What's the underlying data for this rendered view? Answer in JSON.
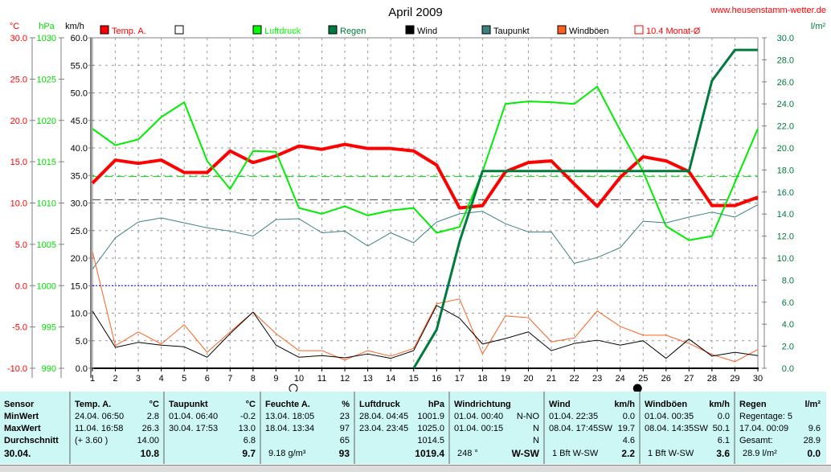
{
  "title": "April 2009",
  "website": "www.heusenstamm-wetter.de",
  "chart_data": {
    "type": "line",
    "title": "April 2009",
    "x": [
      1,
      2,
      3,
      4,
      5,
      6,
      7,
      8,
      9,
      10,
      11,
      12,
      13,
      14,
      15,
      16,
      17,
      18,
      19,
      20,
      21,
      22,
      23,
      24,
      25,
      26,
      27,
      28,
      29,
      30
    ],
    "axes": {
      "temp": {
        "unit": "°C",
        "range": [
          -10,
          30
        ],
        "ticks": [
          "30.0",
          "25.0",
          "20.0",
          "15.0",
          "10.0",
          "5.0",
          "0.0",
          "-5.0",
          "-10.0"
        ],
        "color": "#ff0000"
      },
      "pressure": {
        "unit": "hPa",
        "range": [
          990,
          1030
        ],
        "ticks": [
          "1030",
          "1025",
          "1020",
          "1015",
          "1010",
          "1005",
          "1000",
          "995",
          "990"
        ],
        "color": "#00dd00"
      },
      "wind": {
        "unit": "km/h",
        "range": [
          0,
          60
        ],
        "ticks": [
          "60.0",
          "55.0",
          "50.0",
          "45.0",
          "40.0",
          "35.0",
          "30.0",
          "25.0",
          "20.0",
          "15.0",
          "10.0",
          "5.0",
          "0.0"
        ],
        "color": "#000000"
      },
      "rain": {
        "unit": "l/m²",
        "range": [
          0,
          30
        ],
        "ticks": [
          "30.0",
          "28.0",
          "26.0",
          "24.0",
          "22.0",
          "20.0",
          "18.0",
          "16.0",
          "14.0",
          "12.0",
          "10.0",
          "8.0",
          "6.0",
          "4.0",
          "2.0",
          "0.0"
        ],
        "color": "#007a3d"
      }
    },
    "legend": [
      {
        "label": "Temp. A.",
        "color": "#ff0000"
      },
      {
        "label": "",
        "color": "#ffffff"
      },
      {
        "label": "Luftdruck",
        "color": "#00ff00"
      },
      {
        "label": "Regen",
        "color": "#007a3d"
      },
      {
        "label": "Wind",
        "color": "#000000"
      },
      {
        "label": "Taupunkt",
        "color": "#3c8080"
      },
      {
        "label": "Windböen",
        "color": "#ff6020"
      },
      {
        "label": "10.4 Monat-Ø",
        "color": "#ff0000"
      }
    ],
    "series": [
      {
        "name": "Temp. A.",
        "axis": "temp",
        "color": "#ff0000",
        "width": 4,
        "values": [
          12.4,
          15.2,
          14.8,
          15.2,
          13.7,
          13.7,
          16.3,
          14.9,
          15.7,
          16.9,
          16.5,
          17.1,
          16.6,
          16.6,
          16.3,
          14.6,
          9.4,
          9.7,
          13.8,
          14.9,
          15.1,
          12.3,
          9.6,
          13.1,
          15.6,
          15.1,
          13.8,
          9.7,
          9.7,
          10.7
        ]
      },
      {
        "name": "Luftdruck",
        "axis": "pressure",
        "color": "#00ee00",
        "width": 2,
        "values": [
          1019,
          1017,
          1017.7,
          1020.4,
          1022.2,
          1015.1,
          1011.7,
          1016.3,
          1016.2,
          1009.4,
          1008.7,
          1009.6,
          1008.5,
          1009.1,
          1009.4,
          1006.4,
          1007.1,
          1013.8,
          1022,
          1022.3,
          1022.2,
          1022,
          1024.1,
          1018.8,
          1013.8,
          1007.2,
          1005.5,
          1006,
          1012.5,
          1019
        ]
      },
      {
        "name": "Taupunkt",
        "axis": "temp",
        "color": "#3c8080",
        "width": 1,
        "values": [
          2,
          5.8,
          7.7,
          8.2,
          7.6,
          7,
          6.6,
          6,
          8,
          8.1,
          6.4,
          6.6,
          4.8,
          6.4,
          5.2,
          7.7,
          8.7,
          9,
          7.5,
          6.5,
          6.5,
          2.7,
          3.4,
          4.6,
          7.8,
          7.6,
          8.3,
          8.9,
          8.3,
          9.8
        ]
      },
      {
        "name": "Windböen",
        "axis": "wind",
        "color": "#ff6020",
        "width": 1,
        "values": [
          21.2,
          4.1,
          6.6,
          4.4,
          7.9,
          2.9,
          6.6,
          10.2,
          6.3,
          3.2,
          3.2,
          1.5,
          3.2,
          2.2,
          3.6,
          11.7,
          12.6,
          2.6,
          9.5,
          9.2,
          4.8,
          5.5,
          10.4,
          7.6,
          6,
          6,
          4.5,
          2.5,
          1.2,
          3.4
        ]
      },
      {
        "name": "Wind",
        "axis": "wind",
        "color": "#000000",
        "width": 1,
        "values": [
          10.4,
          3.8,
          4.7,
          4.2,
          3.9,
          2,
          6.3,
          10.2,
          4.2,
          2,
          2.3,
          1.9,
          2.6,
          1.8,
          3.2,
          11.4,
          9.1,
          4.4,
          5.4,
          6.6,
          3.2,
          4.5,
          5.1,
          4.2,
          5,
          1.8,
          5.3,
          2.2,
          2.9,
          2.3
        ]
      },
      {
        "name": "Regen",
        "axis": "rain",
        "color": "#007a3d",
        "width": 3,
        "values": [
          null,
          null,
          null,
          null,
          null,
          null,
          null,
          null,
          null,
          null,
          null,
          null,
          null,
          null,
          0,
          3.5,
          11.5,
          17.9,
          17.9,
          17.9,
          17.9,
          17.9,
          17.9,
          17.9,
          17.9,
          17.9,
          17.9,
          26.1,
          28.9,
          28.9
        ]
      }
    ],
    "reference_lines": [
      {
        "name": "Monat-Ø",
        "axis": "temp",
        "value": 10.4,
        "color": "#444444",
        "style": "dash"
      },
      {
        "name": "Normaldruck",
        "axis": "pressure",
        "value": 1013.2,
        "color": "#00dd00",
        "style": "dash"
      },
      {
        "name": "Frost",
        "axis": "temp",
        "value": 0,
        "color": "#0000ff",
        "style": "dot"
      }
    ],
    "moon_markers": [
      {
        "day": 10,
        "phase": "full"
      },
      {
        "day": 25,
        "phase": "new"
      }
    ]
  },
  "table": {
    "labels": {
      "h": "Sensor",
      "min": "MinWert",
      "max": "MaxWert",
      "avg": "Durchschnitt",
      "cur": "30.04."
    },
    "cols": [
      {
        "h": "Temp. A.",
        "u": "°C",
        "min_t": "24.04.  06:50",
        "min": "2.8",
        "max_t": "11.04.  16:58",
        "max": "26.3",
        "avg_t": "(+ 3.60 )",
        "avg": "14.00",
        "cur_t": "",
        "cur": "10.8"
      },
      {
        "h": "Taupunkt",
        "u": "°C",
        "min_t": "01.04.  06:40",
        "min": "-0.2",
        "max_t": "30.04.  17:53",
        "max": "13.0",
        "avg_t": "",
        "avg": "6.8",
        "cur_t": "",
        "cur": "9.7"
      },
      {
        "h": "Feuchte A.",
        "u": "%",
        "min_t": "13.04.  18:05",
        "min": "23",
        "max_t": "18.04.  13:34",
        "max": "97",
        "avg_t": "",
        "avg": "65",
        "cur_t": "9.18 g/m³",
        "cur": "93"
      },
      {
        "h": "Luftdruck",
        "u": "hPa",
        "min_t": "28.04.  04:45",
        "min": "1001.9",
        "max_t": "23.04.  23:45",
        "max": "1025.0",
        "avg_t": "",
        "avg": "1014.5",
        "cur_t": "",
        "cur": "1019.4"
      },
      {
        "h": "Windrichtung",
        "u": "",
        "min_t": "01.04.  00:40",
        "min": "N-NO",
        "max_t": "01.04.  00:15",
        "max": "N",
        "avg_t": "",
        "avg": "N",
        "cur_t": "248 °",
        "cur": "W-SW"
      },
      {
        "h": "Wind",
        "u": "km/h",
        "min_t": "01.04.  22:35",
        "min": "0.0",
        "max_t": "08.04.  17:45SW",
        "max": "19.7",
        "avg_t": "",
        "avg": "4.6",
        "cur_t": "1 Bft W-SW",
        "cur": "2.2"
      },
      {
        "h": "Windböen",
        "u": "km/h",
        "min_t": "01.04.  00:35",
        "min": "0.0",
        "max_t": "08.04.  14:35SW",
        "max": "50.1",
        "avg_t": "",
        "avg": "6.1",
        "cur_t": "1 Bft W-SW",
        "cur": "3.6"
      },
      {
        "h": "Regen",
        "u": "l/m²",
        "min_t": "Regentage: 5",
        "min": "",
        "max_t": "17.04.  00:09",
        "max": "9.6",
        "avg_t": "Gesamt:",
        "avg": "28.9",
        "cur_t": "28.9 l/m²",
        "cur": "0.0"
      }
    ]
  }
}
